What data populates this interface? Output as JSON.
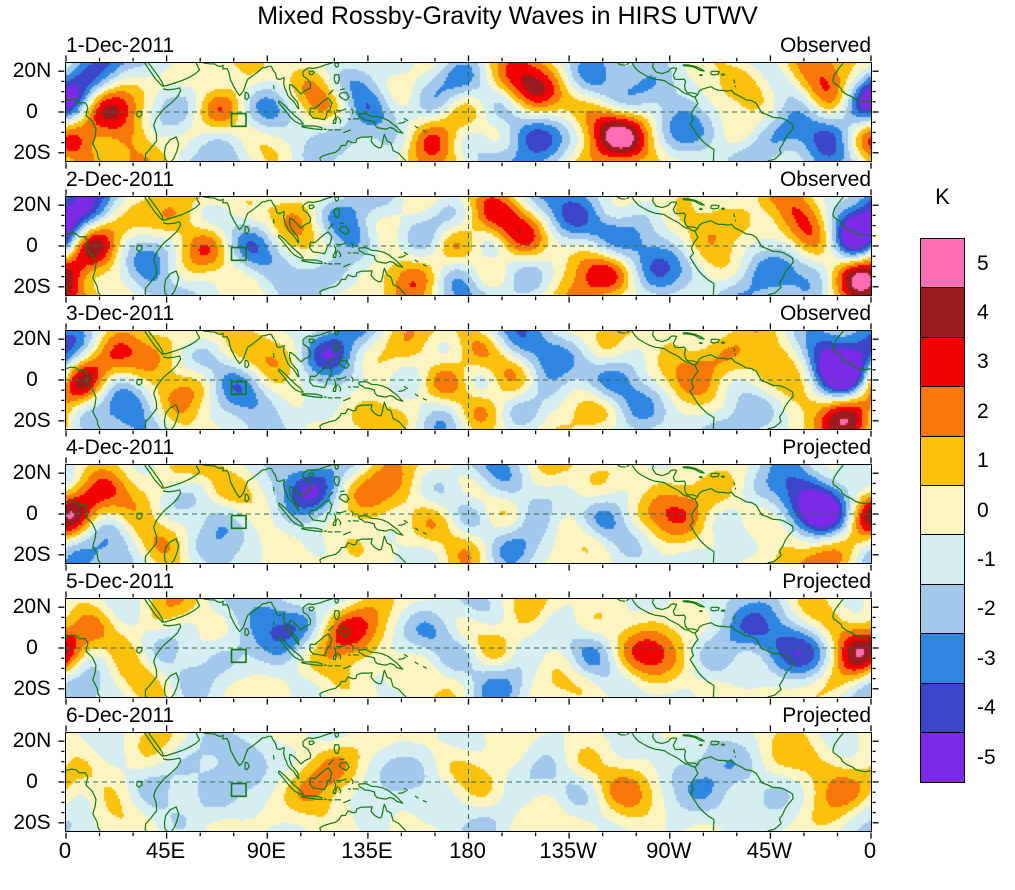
{
  "title": "Mixed Rossby-Gravity Waves in HIRS UTWV",
  "panels": [
    {
      "date": "1-Dec-2011",
      "label": "Observed"
    },
    {
      "date": "2-Dec-2011",
      "label": "Observed"
    },
    {
      "date": "3-Dec-2011",
      "label": "Observed"
    },
    {
      "date": "4-Dec-2011",
      "label": "Projected"
    },
    {
      "date": "5-Dec-2011",
      "label": "Projected"
    },
    {
      "date": "6-Dec-2011",
      "label": "Projected"
    }
  ],
  "axis": {
    "x_ticks": [
      "0",
      "45E",
      "90E",
      "135E",
      "180",
      "135W",
      "90W",
      "45W",
      "0"
    ],
    "y_ticks": [
      "20N",
      "0",
      "20S"
    ]
  },
  "colorbar": {
    "unit": "K",
    "tick_labels": [
      "5",
      "4",
      "3",
      "2",
      "1",
      "0",
      "-1",
      "-2",
      "-3",
      "-4",
      "-5"
    ],
    "colors_top_to_bottom": [
      "#ff6eb4",
      "#9b1c1c",
      "#f30000",
      "#f8790a",
      "#fcc10a",
      "#fcf5c2",
      "#d5eef2",
      "#a2c8ec",
      "#2e86e0",
      "#3c46c8",
      "#7d2ae8"
    ]
  },
  "chart_data": {
    "type": "heatmap",
    "variant": "filled_contour_longitude_latitude_maps",
    "title": "Mixed Rossby-Gravity Waves in HIRS UTWV",
    "unit": "K",
    "n_panels": 6,
    "panels": [
      {
        "date": "1-Dec-2011",
        "label": "Observed"
      },
      {
        "date": "2-Dec-2011",
        "label": "Observed"
      },
      {
        "date": "3-Dec-2011",
        "label": "Observed"
      },
      {
        "date": "4-Dec-2011",
        "label": "Projected"
      },
      {
        "date": "5-Dec-2011",
        "label": "Projected"
      },
      {
        "date": "6-Dec-2011",
        "label": "Projected"
      }
    ],
    "x_axis": {
      "ticks": [
        "0",
        "45E",
        "90E",
        "135E",
        "180",
        "135W",
        "90W",
        "45W",
        "0"
      ],
      "range_deg_lon": [
        0,
        360
      ]
    },
    "y_axis": {
      "ticks": [
        "20N",
        "0",
        "20S"
      ],
      "range_deg_lat": [
        -24,
        24
      ]
    },
    "contour_levels_K": [
      -5,
      -4,
      -3,
      -2,
      -1,
      0,
      1,
      2,
      3,
      4,
      5
    ],
    "colorbar_tick_labels_top_to_bottom": [
      "5",
      "4",
      "3",
      "2",
      "1",
      "0",
      "-1",
      "-2",
      "-3",
      "-4",
      "-5"
    ],
    "colorbar_colors_top_to_bottom": [
      "#ff6eb4",
      "#9b1c1c",
      "#f30000",
      "#f8790a",
      "#fcc10a",
      "#fcf5c2",
      "#d5eef2",
      "#a2c8ec",
      "#2e86e0",
      "#3c46c8",
      "#7d2ae8"
    ],
    "approx_anomaly_amplitude_K": {
      "observed_panels": 3.5,
      "projected_panels": 2.5
    },
    "overlays": {
      "coastlines": true,
      "equator_dashed_line": true,
      "dateline_dashed_line": true,
      "highlight_box_lon_deg": [
        74,
        80.5
      ],
      "highlight_box_lat_deg": [
        -7,
        -0.8
      ]
    }
  }
}
